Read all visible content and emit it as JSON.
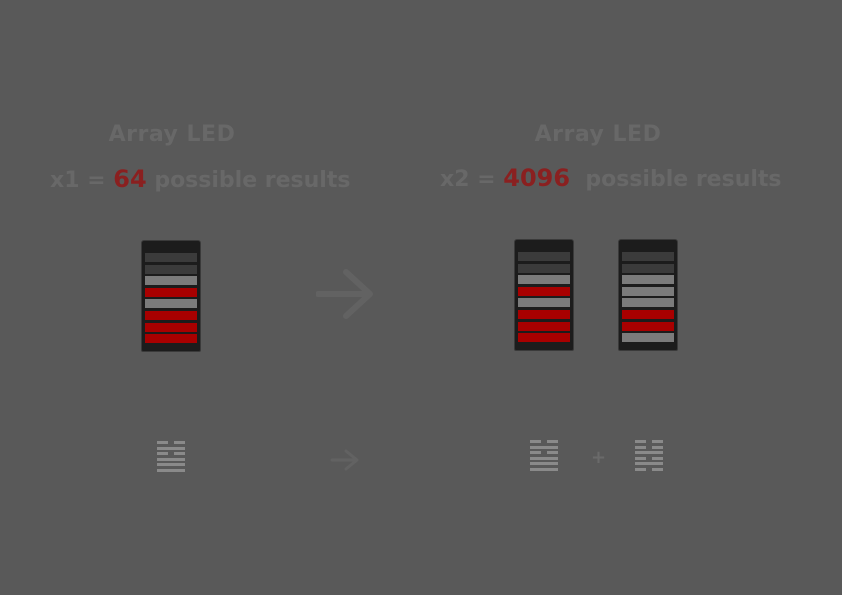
{
  "left": {
    "title": "Array LED",
    "prefix": "x1 = ",
    "count": "64",
    "suffix": " possible results",
    "leds": [
      [
        "dark",
        "dark",
        "grey",
        "red",
        "grey",
        "red",
        "red",
        "red"
      ]
    ],
    "hexagrams": [
      [
        "broken",
        "solid",
        "broken",
        "solid",
        "solid",
        "solid"
      ]
    ]
  },
  "right": {
    "title": "Array LED",
    "prefix": "x2 = ",
    "count": "4096",
    "suffix": "  possible results",
    "leds": [
      [
        "dark",
        "dark",
        "grey",
        "red",
        "grey",
        "red",
        "red",
        "red"
      ],
      [
        "dark",
        "dark",
        "grey",
        "grey",
        "grey",
        "red",
        "red",
        "grey"
      ]
    ],
    "hexagrams": [
      [
        "broken",
        "solid",
        "broken",
        "solid",
        "solid",
        "solid"
      ],
      [
        "broken",
        "broken",
        "solid",
        "broken",
        "solid",
        "broken"
      ]
    ],
    "plus": "+"
  },
  "colors": {
    "background": "#595959",
    "red": "#a80000",
    "grey": "#7b7b7b",
    "dark": "#3b3b3b"
  }
}
